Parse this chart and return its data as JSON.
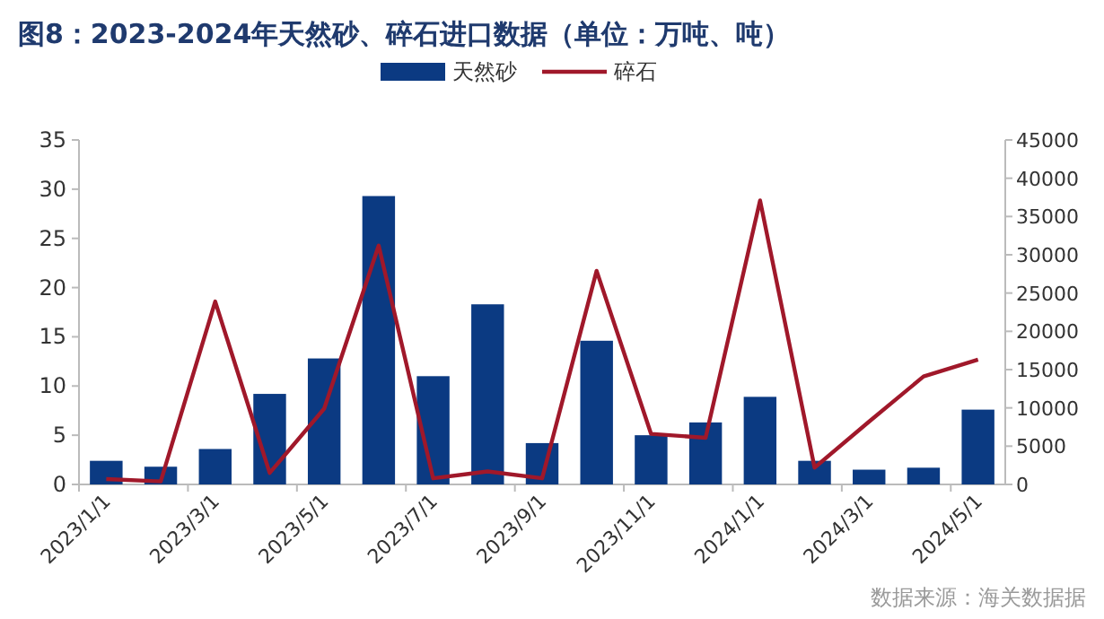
{
  "chart_data": {
    "type": "bar",
    "title": "图8：2023-2024年天然砂、碎石进口数据（单位：万吨、吨）",
    "categories": [
      "2023/1/1",
      null,
      "2023/3/1",
      null,
      "2023/5/1",
      null,
      "2023/7/1",
      null,
      "2023/9/1",
      null,
      "2023/11/1",
      null,
      "2024/1/1",
      null,
      "2024/3/1",
      null,
      "2024/5/1"
    ],
    "series": [
      {
        "name": "天然砂",
        "color": "#0b3a82",
        "values": [
          2.4,
          1.8,
          3.6,
          9.2,
          12.8,
          29.3,
          11.0,
          18.3,
          4.2,
          14.6,
          5.0,
          6.3,
          8.9,
          2.4,
          1.5,
          1.7,
          7.6
        ]
      },
      {
        "name": "碎石",
        "type": "line",
        "axis": "y2",
        "color": "#a0182a",
        "values": [
          700,
          400,
          23900,
          1500,
          9900,
          31200,
          800,
          1700,
          800,
          27900,
          6600,
          6100,
          37100,
          2200,
          8200,
          14100,
          16300
        ]
      }
    ],
    "ylim": [
      0,
      35
    ],
    "yticks": [
      0,
      5,
      10,
      15,
      20,
      25,
      30,
      35
    ],
    "y2lim": [
      0,
      45000
    ],
    "y2ticks": [
      0,
      5000,
      10000,
      15000,
      20000,
      25000,
      30000,
      35000,
      40000,
      45000
    ],
    "legend": "top",
    "annotations": [
      "数据来源：海关数据据"
    ]
  }
}
